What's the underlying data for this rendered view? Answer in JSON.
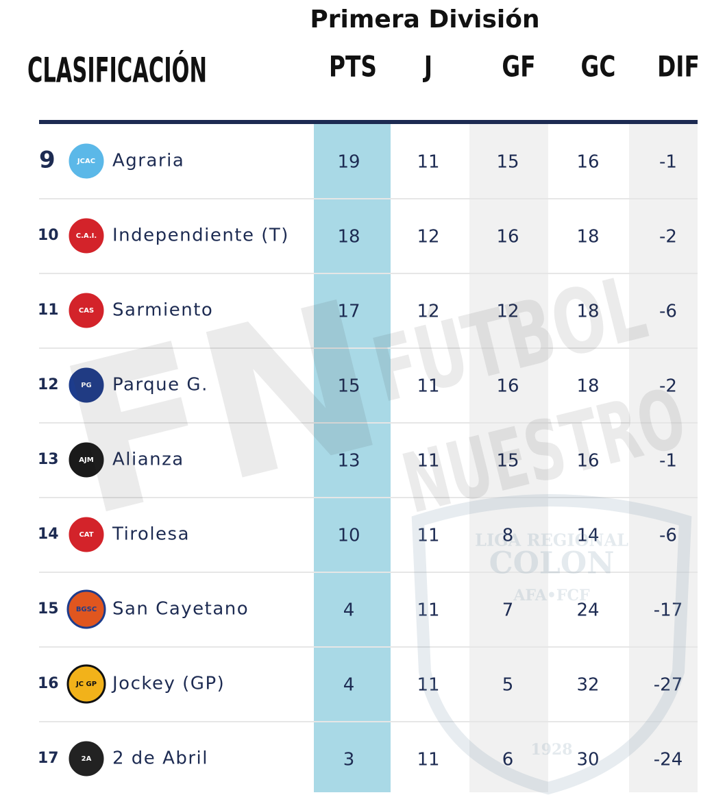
{
  "header": {
    "league": "Primera División",
    "title": "CLASIFICACIÓN"
  },
  "table": {
    "columns": [
      "PTS",
      "J",
      "GF",
      "GC",
      "DIF"
    ],
    "rows": [
      {
        "position": 9,
        "team": "Agraria",
        "logo": "JCAC",
        "values": [
          19,
          11,
          15,
          16,
          -1
        ]
      },
      {
        "position": 10,
        "team": "Independiente (T)",
        "logo": "C.A.I.",
        "values": [
          18,
          12,
          16,
          18,
          -2
        ]
      },
      {
        "position": 11,
        "team": "Sarmiento",
        "logo": "CAS",
        "values": [
          17,
          12,
          12,
          18,
          -6
        ]
      },
      {
        "position": 12,
        "team": "Parque G.",
        "logo": "PG",
        "values": [
          15,
          11,
          16,
          18,
          -2
        ]
      },
      {
        "position": 13,
        "team": "Alianza",
        "logo": "AJM",
        "values": [
          13,
          11,
          15,
          16,
          -1
        ]
      },
      {
        "position": 14,
        "team": "Tirolesa",
        "logo": "CAT",
        "values": [
          10,
          11,
          8,
          14,
          -6
        ]
      },
      {
        "position": 15,
        "team": "San Cayetano",
        "logo": "BGSC",
        "values": [
          4,
          11,
          7,
          24,
          -17
        ]
      },
      {
        "position": 16,
        "team": "Jockey (GP)",
        "logo": "JC GP",
        "values": [
          4,
          11,
          5,
          32,
          -27
        ]
      },
      {
        "position": 17,
        "team": "2 de Abril",
        "logo": "2A",
        "values": [
          3,
          11,
          6,
          30,
          -24
        ]
      }
    ]
  },
  "watermark": {
    "initials": "FN",
    "line1": "FÚTBOL",
    "line2": "NUESTRO",
    "crest": [
      "LIGA REGIONAL",
      "COLON",
      "AFA•FCF",
      "1928"
    ]
  }
}
